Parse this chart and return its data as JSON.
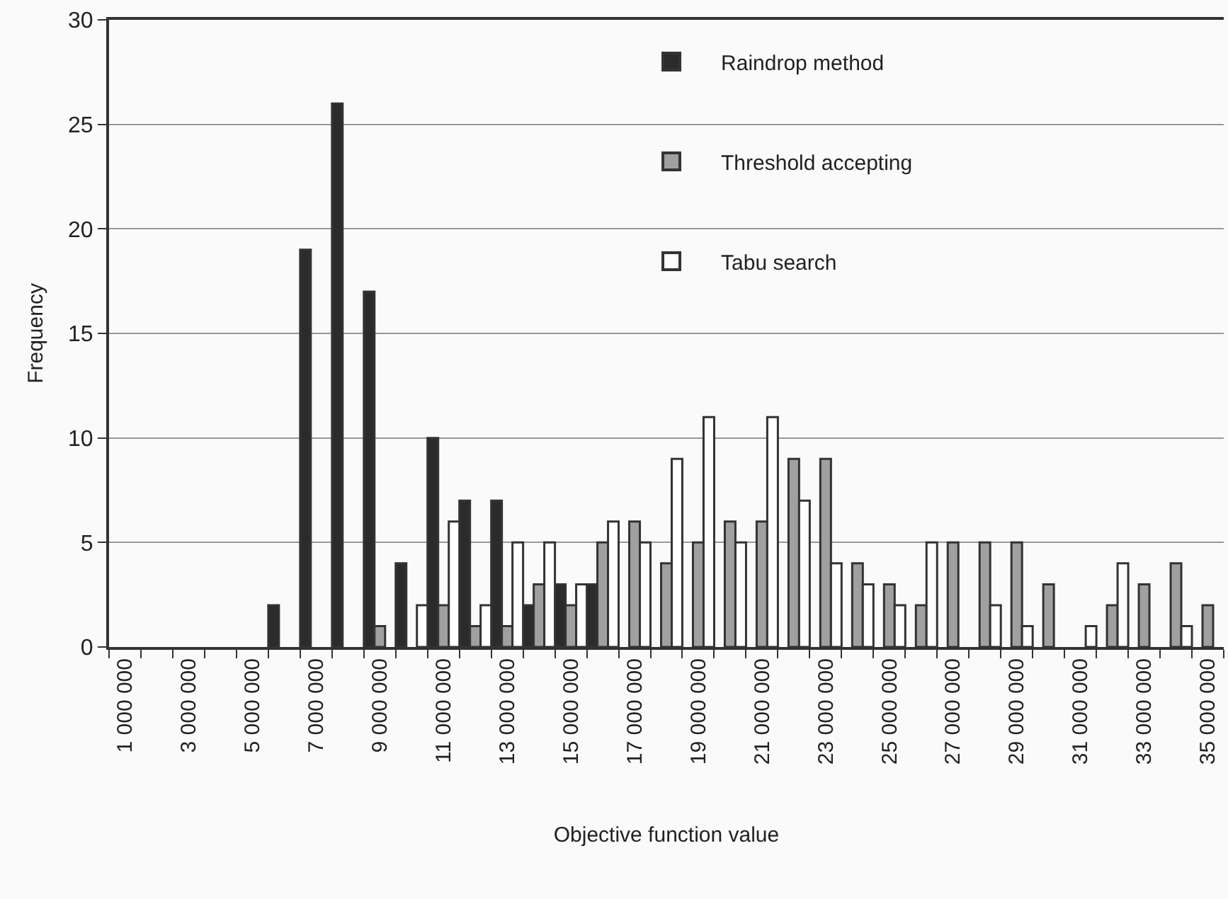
{
  "chart_data": {
    "type": "bar",
    "xlabel": "Objective function value",
    "ylabel": "Frequency",
    "categories": [
      "1 000 000",
      null,
      "3 000 000",
      null,
      "5 000 000",
      null,
      "7 000 000",
      null,
      "9 000 000",
      null,
      "11 000 000",
      null,
      "13 000 000",
      null,
      "15 000 000",
      null,
      "17 000 000",
      null,
      "19 000 000",
      null,
      "21 000 000",
      null,
      "23 000 000",
      null,
      "25 000 000",
      null,
      "27 000 000",
      null,
      "29 000 000",
      null,
      "31 000 000",
      null,
      "33 000 000",
      null,
      "35 000 000"
    ],
    "series": [
      {
        "name": "Raindrop method",
        "color": "#2b2b2b",
        "values": [
          0,
          0,
          0,
          0,
          0,
          2,
          19,
          26,
          17,
          4,
          10,
          7,
          7,
          2,
          3,
          3,
          0,
          0,
          0,
          0,
          0,
          0,
          0,
          0,
          0,
          0,
          0,
          0,
          0,
          0,
          0,
          0,
          0,
          0,
          0
        ]
      },
      {
        "name": "Threshold accepting",
        "color": "#a0a0a0",
        "values": [
          0,
          0,
          0,
          0,
          0,
          0,
          0,
          0,
          1,
          0,
          2,
          1,
          1,
          3,
          2,
          5,
          6,
          4,
          5,
          6,
          6,
          9,
          9,
          4,
          3,
          2,
          5,
          5,
          5,
          3,
          0,
          2,
          3,
          4,
          2
        ]
      },
      {
        "name": "Tabu search",
        "color": "#ffffff",
        "values": [
          0,
          0,
          0,
          0,
          0,
          0,
          0,
          0,
          0,
          2,
          6,
          2,
          5,
          5,
          3,
          6,
          5,
          9,
          11,
          5,
          11,
          7,
          4,
          3,
          2,
          5,
          0,
          2,
          1,
          0,
          1,
          4,
          0,
          1,
          0
        ]
      }
    ],
    "ylim": [
      0,
      30
    ],
    "yticks": [
      0,
      5,
      10,
      15,
      20,
      25,
      30
    ],
    "grid": "y",
    "legend": "top right"
  }
}
